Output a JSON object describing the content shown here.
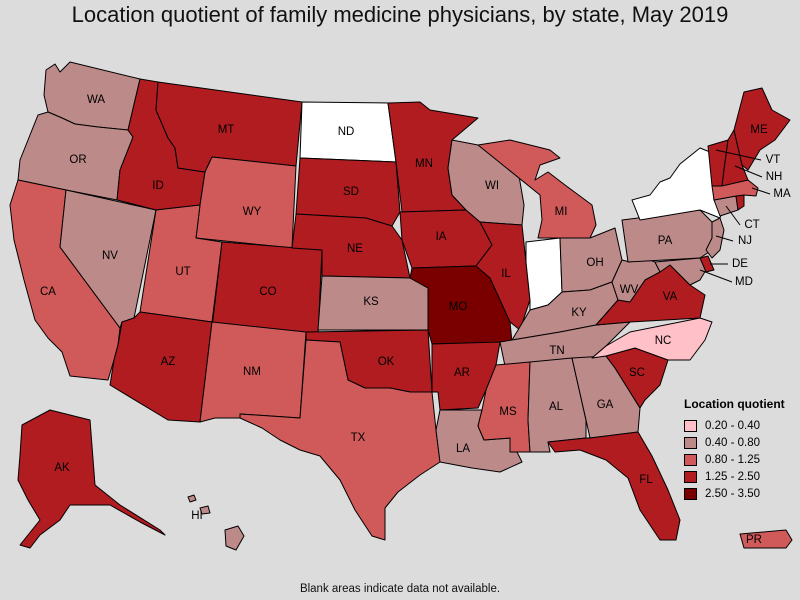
{
  "title": "Location quotient of family medicine physicians, by state, May 2019",
  "legend": {
    "title": "Location quotient",
    "classes": [
      {
        "label": "0.20 - 0.40",
        "color": "#ffc0c8"
      },
      {
        "label": "0.40 - 0.80",
        "color": "#bd8a8a"
      },
      {
        "label": "0.80 - 1.25",
        "color": "#d05a5a"
      },
      {
        "label": "1.25 - 2.50",
        "color": "#b01c20"
      },
      {
        "label": "2.50 - 3.50",
        "color": "#7a0000"
      }
    ]
  },
  "no_data_color": "#ffffff",
  "footnote": "Blank areas indicate data not available.",
  "states": {
    "WA": {
      "class": 1
    },
    "OR": {
      "class": 1
    },
    "CA": {
      "class": 2
    },
    "NV": {
      "class": 1
    },
    "ID": {
      "class": 3
    },
    "MT": {
      "class": 3
    },
    "WY": {
      "class": 2
    },
    "UT": {
      "class": 2
    },
    "AZ": {
      "class": 3
    },
    "CO": {
      "class": 3
    },
    "NM": {
      "class": 2
    },
    "ND": {
      "class": null
    },
    "SD": {
      "class": 3
    },
    "NE": {
      "class": 3
    },
    "KS": {
      "class": 1
    },
    "OK": {
      "class": 3
    },
    "TX": {
      "class": 2
    },
    "MN": {
      "class": 3
    },
    "IA": {
      "class": 3
    },
    "MO": {
      "class": 4
    },
    "AR": {
      "class": 3
    },
    "LA": {
      "class": 1
    },
    "WI": {
      "class": 1
    },
    "IL": {
      "class": 3
    },
    "MI": {
      "class": 2
    },
    "IN": {
      "class": null
    },
    "OH": {
      "class": 1
    },
    "KY": {
      "class": 1
    },
    "TN": {
      "class": 1
    },
    "MS": {
      "class": 2
    },
    "AL": {
      "class": 1
    },
    "GA": {
      "class": 1
    },
    "FL": {
      "class": 3
    },
    "SC": {
      "class": 3
    },
    "NC": {
      "class": 0
    },
    "VA": {
      "class": 3
    },
    "WV": {
      "class": 1
    },
    "PA": {
      "class": 1
    },
    "NY": {
      "class": null
    },
    "ME": {
      "class": 3
    },
    "VT": {
      "class": 3
    },
    "NH": {
      "class": 3
    },
    "MA": {
      "class": 2
    },
    "CT": {
      "class": 1
    },
    "RI": {
      "class": 3
    },
    "NJ": {
      "class": 1
    },
    "DE": {
      "class": 3
    },
    "MD": {
      "class": 1
    },
    "AK": {
      "class": 3
    },
    "HI": {
      "class": 1
    },
    "PR": {
      "class": 2
    }
  }
}
